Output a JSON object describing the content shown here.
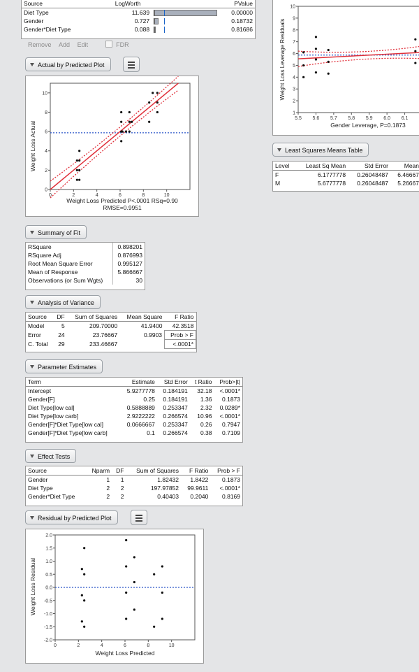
{
  "logworth_report": {
    "columns": [
      "Source",
      "LogWorth",
      "PValue"
    ],
    "rows": [
      {
        "source": "Diet Type",
        "logworth": "11.639",
        "pvalue": "0.00000",
        "bar": 1.0
      },
      {
        "source": "Gender",
        "logworth": "0.727",
        "pvalue": "0.18732",
        "bar": 0.0625
      },
      {
        "source": "Gender*Diet Type",
        "logworth": "0.088",
        "pvalue": "0.81686",
        "bar": 0.0076
      }
    ],
    "actions": {
      "remove": "Remove",
      "add": "Add",
      "edit": "Edit",
      "fdr": "FDR"
    }
  },
  "leverage_plot": {
    "ylabel": "Weight Loss Leverage Residuals",
    "xlabel": "Gender Leverage, P=0.1873"
  },
  "lsmeans": {
    "title": "Least Squares Means Table",
    "columns": [
      "Level",
      "Least Sq Mean",
      "Std Error",
      "Mean"
    ],
    "rows": [
      [
        "F",
        "6.1777778",
        "0.26048487",
        "6.46667"
      ],
      [
        "M",
        "5.6777778",
        "0.26048487",
        "5.26667"
      ]
    ]
  },
  "actual_pred": {
    "title": "Actual by Predicted Plot",
    "ylabel": "Weight Loss Actual",
    "xlabel": "Weight Loss Predicted P<.0001 RSq=0.90",
    "xlabel2": "RMSE=0.9951"
  },
  "summary_fit": {
    "title": "Summary of Fit",
    "rows": [
      [
        "RSquare",
        "0.898201"
      ],
      [
        "RSquare Adj",
        "0.876993"
      ],
      [
        "Root Mean Square Error",
        "0.995127"
      ],
      [
        "Mean of Response",
        "5.866667"
      ],
      [
        "Observations (or Sum Wgts)",
        "30"
      ]
    ]
  },
  "anova": {
    "title": "Analysis of Variance",
    "columns": [
      "Source",
      "DF",
      "Sum of Squares",
      "Mean Square",
      "F Ratio"
    ],
    "rows": [
      [
        "Model",
        "5",
        "209.70000",
        "41.9400",
        "42.3518"
      ],
      [
        "Error",
        "24",
        "23.76667",
        "0.9903",
        "Prob > F"
      ],
      [
        "C. Total",
        "29",
        "233.46667",
        "",
        "<.0001*"
      ]
    ]
  },
  "param_est": {
    "title": "Parameter Estimates",
    "columns": [
      "Term",
      "Estimate",
      "Std Error",
      "t Ratio",
      "Prob>|t|"
    ],
    "rows": [
      [
        "Intercept",
        "5.9277778",
        "0.184191",
        "32.18",
        "<.0001*"
      ],
      [
        "Gender[F]",
        "0.25",
        "0.184191",
        "1.36",
        "0.1873"
      ],
      [
        "Diet Type[low cal]",
        "0.5888889",
        "0.253347",
        "2.32",
        "0.0289*"
      ],
      [
        "Diet Type[low carb]",
        "2.9222222",
        "0.266574",
        "10.96",
        "<.0001*"
      ],
      [
        "Gender[F]*Diet Type[low cal]",
        "0.0666667",
        "0.253347",
        "0.26",
        "0.7947"
      ],
      [
        "Gender[F]*Diet Type[low carb]",
        "0.1",
        "0.266574",
        "0.38",
        "0.7109"
      ]
    ]
  },
  "effect_tests": {
    "title": "Effect Tests",
    "columns": [
      "Source",
      "Nparm",
      "DF",
      "Sum of Squares",
      "F Ratio",
      "Prob > F"
    ],
    "rows": [
      [
        "Gender",
        "1",
        "1",
        "1.82432",
        "1.8422",
        "0.1873"
      ],
      [
        "Diet Type",
        "2",
        "2",
        "197.97852",
        "99.9611",
        "<.0001*"
      ],
      [
        "Gender*Diet Type",
        "2",
        "2",
        "0.40403",
        "0.2040",
        "0.8169"
      ]
    ]
  },
  "residual_pred": {
    "title": "Residual by Predicted Plot",
    "ylabel": "Weight Loss Residual",
    "xlabel": "Weight Loss Predicted"
  },
  "chart_data": [
    {
      "type": "scatter",
      "name": "actual-by-predicted",
      "xlabel": "Weight Loss Predicted P<.0001 RSq=0.90",
      "ylabel": "Weight Loss Actual",
      "xlim": [
        0,
        12
      ],
      "ylim": [
        0,
        11
      ],
      "xticks": [
        0,
        2,
        4,
        6,
        8,
        10
      ],
      "yticks": [
        0,
        2,
        4,
        6,
        8,
        10
      ],
      "mean_line": 5.87,
      "fit_line": [
        [
          0,
          0
        ],
        [
          11,
          11
        ]
      ],
      "points": [
        [
          2.3,
          1
        ],
        [
          2.5,
          1
        ],
        [
          2.3,
          2
        ],
        [
          2.5,
          2
        ],
        [
          2.3,
          3
        ],
        [
          2.5,
          3
        ],
        [
          2.5,
          4
        ],
        [
          6.1,
          5
        ],
        [
          6.1,
          6
        ],
        [
          6.2,
          6
        ],
        [
          6.5,
          6
        ],
        [
          6.8,
          6
        ],
        [
          6.1,
          7
        ],
        [
          6.1,
          8
        ],
        [
          6.8,
          8
        ],
        [
          6.8,
          7
        ],
        [
          7.0,
          7
        ],
        [
          8.5,
          7
        ],
        [
          8.5,
          9
        ],
        [
          9.2,
          9
        ],
        [
          9.2,
          8
        ],
        [
          8.8,
          10
        ],
        [
          9.2,
          10
        ]
      ]
    },
    {
      "type": "scatter",
      "name": "residual-by-predicted",
      "xlabel": "Weight Loss Predicted",
      "ylabel": "Weight Loss Residual",
      "xlim": [
        0,
        12
      ],
      "ylim": [
        -2,
        2
      ],
      "xticks": [
        0,
        2,
        4,
        6,
        8,
        10
      ],
      "yticks": [
        -2.0,
        -1.5,
        -1.0,
        -0.5,
        0.0,
        0.5,
        1.0,
        1.5,
        2.0
      ],
      "zero_line": 0,
      "points": [
        [
          2.5,
          1.5
        ],
        [
          2.3,
          0.7
        ],
        [
          2.5,
          0.5
        ],
        [
          2.3,
          -0.3
        ],
        [
          2.5,
          -0.5
        ],
        [
          2.3,
          -1.3
        ],
        [
          2.5,
          -1.5
        ],
        [
          6.1,
          1.8
        ],
        [
          6.1,
          0.8
        ],
        [
          6.8,
          1.15
        ],
        [
          6.8,
          0.2
        ],
        [
          6.1,
          -0.2
        ],
        [
          6.8,
          -0.85
        ],
        [
          6.1,
          -1.2
        ],
        [
          8.5,
          0.5
        ],
        [
          9.2,
          0.8
        ],
        [
          9.2,
          -0.2
        ],
        [
          8.5,
          -1.5
        ],
        [
          9.2,
          -1.2
        ]
      ]
    },
    {
      "type": "scatter",
      "name": "gender-leverage",
      "xlabel": "Gender Leverage, P=0.1873",
      "ylabel": "Weight Loss Leverage Residuals",
      "xlim": [
        5.5,
        6.2
      ],
      "ylim": [
        1,
        10
      ],
      "xticks": [
        5.5,
        5.6,
        5.7,
        5.8,
        5.9,
        6.0,
        6.1
      ],
      "yticks": [
        1,
        2,
        3,
        4,
        5,
        6,
        7,
        8,
        9,
        10
      ],
      "mean_line": 5.87,
      "fit_line": [
        [
          5.5,
          5.55
        ],
        [
          6.2,
          6.1
        ]
      ],
      "points": [
        [
          5.53,
          6.1
        ],
        [
          5.53,
          5.0
        ],
        [
          5.53,
          4.0
        ],
        [
          5.6,
          7.4
        ],
        [
          5.6,
          6.4
        ],
        [
          5.6,
          5.5
        ],
        [
          5.6,
          4.4
        ],
        [
          5.67,
          6.3
        ],
        [
          5.67,
          5.3
        ],
        [
          5.67,
          4.3
        ],
        [
          6.16,
          7.2
        ],
        [
          6.16,
          6.2
        ],
        [
          6.16,
          5.2
        ],
        [
          6.19,
          6.9
        ],
        [
          6.19,
          4.9
        ]
      ]
    }
  ]
}
